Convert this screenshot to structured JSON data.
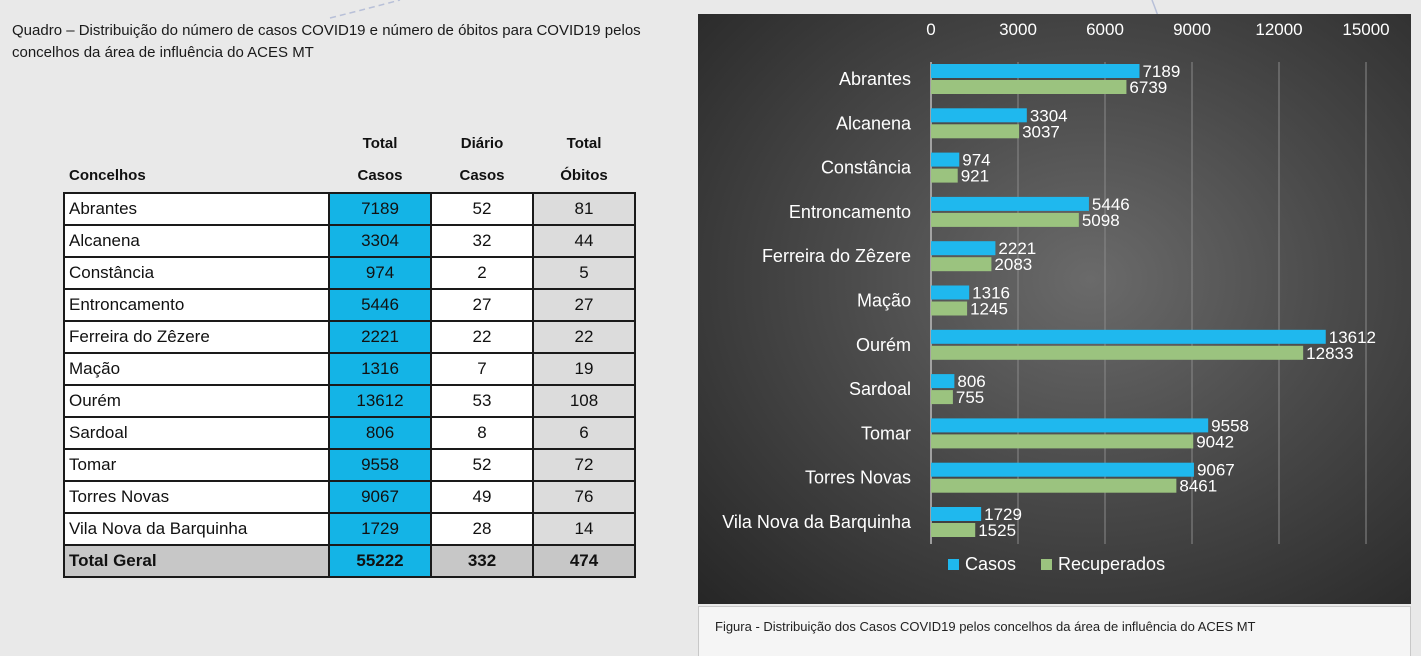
{
  "caption_left": "Quadro – Distribuição do número de casos COVID19 e número de óbitos para COVID19 pelos concelhos da área de influência do ACES MT",
  "table": {
    "headers": {
      "concelhos": "Concelhos",
      "total_casos_1": "Total",
      "total_casos_2": "Casos",
      "diario_1": "Diário",
      "diario_2": "Casos",
      "obitos_1": "Total",
      "obitos_2": "Óbitos"
    },
    "rows": [
      {
        "name": "Abrantes",
        "casos": "7189",
        "diario": "52",
        "obitos": "81"
      },
      {
        "name": "Alcanena",
        "casos": "3304",
        "diario": "32",
        "obitos": "44"
      },
      {
        "name": "Constância",
        "casos": "974",
        "diario": "2",
        "obitos": "5"
      },
      {
        "name": "Entroncamento",
        "casos": "5446",
        "diario": "27",
        "obitos": "27"
      },
      {
        "name": "Ferreira do Zêzere",
        "casos": "2221",
        "diario": "22",
        "obitos": "22"
      },
      {
        "name": "Mação",
        "casos": "1316",
        "diario": "7",
        "obitos": "19"
      },
      {
        "name": "Ourém",
        "casos": "13612",
        "diario": "53",
        "obitos": "108"
      },
      {
        "name": "Sardoal",
        "casos": "806",
        "diario": "8",
        "obitos": "6"
      },
      {
        "name": "Tomar",
        "casos": "9558",
        "diario": "52",
        "obitos": "72"
      },
      {
        "name": "Torres Novas",
        "casos": "9067",
        "diario": "49",
        "obitos": "76"
      },
      {
        "name": "Vila Nova da Barquinha",
        "casos": "1729",
        "diario": "28",
        "obitos": "14"
      }
    ],
    "total": {
      "name": "Total Geral",
      "casos": "55222",
      "diario": "332",
      "obitos": "474"
    }
  },
  "chart_data": {
    "type": "bar",
    "orientation": "horizontal",
    "categories": [
      "Abrantes",
      "Alcanena",
      "Constância",
      "Entroncamento",
      "Ferreira do Zêzere",
      "Mação",
      "Ourém",
      "Sardoal",
      "Tomar",
      "Torres Novas",
      "Vila Nova da Barquinha"
    ],
    "series": [
      {
        "name": "Casos",
        "color": "#1fb8ee",
        "values": [
          7189,
          3304,
          974,
          5446,
          2221,
          1316,
          13612,
          806,
          9558,
          9067,
          1729
        ]
      },
      {
        "name": "Recuperados",
        "color": "#9bc37f",
        "values": [
          6739,
          3037,
          921,
          5098,
          2083,
          1245,
          12833,
          755,
          9042,
          8461,
          1525
        ]
      }
    ],
    "x_ticks": [
      0,
      3000,
      6000,
      9000,
      12000,
      15000
    ],
    "xlim": [
      0,
      15000
    ],
    "axis_position": "top",
    "grid": true,
    "legend": "bottom"
  },
  "figure_caption": "Figura -  Distribuição dos Casos COVID19 pelos concelhos da área de influência do ACES MT"
}
